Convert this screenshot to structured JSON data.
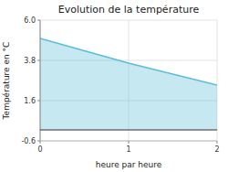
{
  "chart_data": {
    "type": "area",
    "title": "Evolution de la température",
    "xlabel": "heure par heure",
    "ylabel": "Température en °C",
    "x": [
      0,
      1,
      2
    ],
    "values": [
      5.0,
      3.65,
      2.45
    ],
    "color": "#5bbcd6",
    "xlim": [
      0,
      2
    ],
    "ylim": [
      -0.6,
      6.0
    ],
    "xticks": [
      0,
      1,
      2
    ],
    "yticks": [
      -0.6,
      1.6,
      3.8,
      {
        "value": 6.0,
        "label": "6.0"
      }
    ],
    "grid": true
  }
}
